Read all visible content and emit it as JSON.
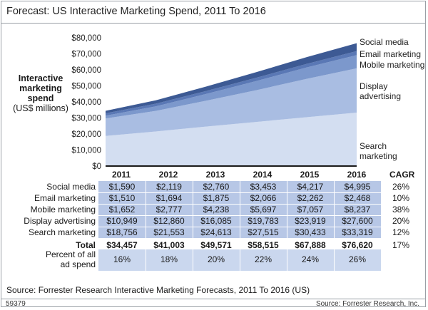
{
  "title": "Forecast: US Interactive Marketing Spend, 2011 To 2016",
  "source": "Source: Forrester Research Interactive Marketing Forecasts, 2011 To 2016 (US)",
  "footer_id": "59379",
  "footer_credit": "Source: Forrester Research, Inc.",
  "colors": {
    "social": "#3d5a94",
    "email": "#5a78b5",
    "mobile": "#7c98cc",
    "display": "#a9bde2",
    "search": "#d3def1"
  },
  "chart_data": {
    "type": "area",
    "title": "Forecast: US Interactive Marketing Spend, 2011 To 2016",
    "ylabel_line1": "Interactive",
    "ylabel_line2": "marketing",
    "ylabel_line3": "spend",
    "ylabel_line4": "(US$ millions)",
    "ylim": [
      0,
      80000
    ],
    "yticks": [
      "$0",
      "$10,000",
      "$20,000",
      "$30,000",
      "$40,000",
      "$50,000",
      "$60,000",
      "$70,000",
      "$80,000"
    ],
    "x": [
      "2011",
      "2012",
      "2013",
      "2014",
      "2015",
      "2016"
    ],
    "stacked": true,
    "series": [
      {
        "name": "Search marketing",
        "values": [
          18756,
          21553,
          24613,
          27515,
          30433,
          33319
        ]
      },
      {
        "name": "Display advertising",
        "values": [
          10949,
          12860,
          16085,
          19783,
          23919,
          27600
        ]
      },
      {
        "name": "Mobile marketing",
        "values": [
          1652,
          2777,
          4238,
          5697,
          7057,
          8237
        ]
      },
      {
        "name": "Email marketing",
        "values": [
          1510,
          1694,
          1875,
          2066,
          2262,
          2468
        ]
      },
      {
        "name": "Social media",
        "values": [
          1590,
          2119,
          2760,
          3453,
          4217,
          4995
        ]
      }
    ],
    "layer_labels": {
      "social": "Social media",
      "email": "Email marketing",
      "mobile": "Mobile marketing",
      "display_1": "Display",
      "display_2": "advertising",
      "search": "Search marketing"
    }
  },
  "table": {
    "years": [
      "2011",
      "2012",
      "2013",
      "2014",
      "2015",
      "2016"
    ],
    "cagr_header": "CAGR",
    "rows": [
      {
        "label": "Social media",
        "values": [
          "$1,590",
          "$2,119",
          "$2,760",
          "$3,453",
          "$4,217",
          "$4,995"
        ],
        "cagr": "26%"
      },
      {
        "label": "Email marketing",
        "values": [
          "$1,510",
          "$1,694",
          "$1,875",
          "$2,066",
          "$2,262",
          "$2,468"
        ],
        "cagr": "10%"
      },
      {
        "label": "Mobile marketing",
        "values": [
          "$1,652",
          "$2,777",
          "$4,238",
          "$5,697",
          "$7,057",
          "$8,237"
        ],
        "cagr": "38%"
      },
      {
        "label": "Display advertising",
        "values": [
          "$10,949",
          "$12,860",
          "$16,085",
          "$19,783",
          "$23,919",
          "$27,600"
        ],
        "cagr": "20%"
      },
      {
        "label": "Search marketing",
        "values": [
          "$18,756",
          "$21,553",
          "$24,613",
          "$27,515",
          "$30,433",
          "$33,319"
        ],
        "cagr": "12%"
      }
    ],
    "total": {
      "label": "Total",
      "values": [
        "$34,457",
        "$41,003",
        "$49,571",
        "$58,515",
        "$67,888",
        "$76,620"
      ],
      "cagr": "17%"
    },
    "share": {
      "label_1": "Percent of all",
      "label_2": "ad spend",
      "values": [
        "16%",
        "18%",
        "20%",
        "22%",
        "24%",
        "26%"
      ]
    }
  }
}
